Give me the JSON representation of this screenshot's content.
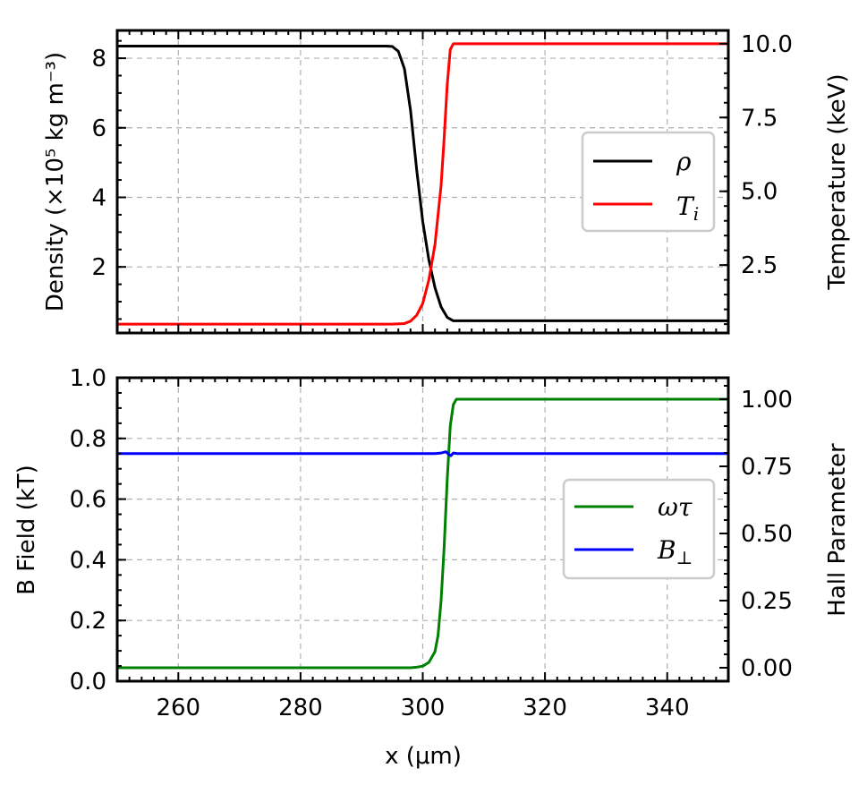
{
  "chart_data": [
    {
      "type": "line",
      "xlim": [
        250,
        350
      ],
      "x_ticks": [
        260,
        280,
        300,
        320,
        340
      ],
      "x_tick_labels_shown": false,
      "grid": true,
      "ylabel": "Density (×10⁵ kg m⁻³)",
      "ylim": [
        0.1,
        8.8
      ],
      "y_ticks": [
        2,
        4,
        6,
        8
      ],
      "y_tick_labels": [
        "2",
        "4",
        "6",
        "8"
      ],
      "y2label": "Temperature (keV)",
      "y2lim": [
        0.2,
        10.45
      ],
      "y2_ticks": [
        2.5,
        5.0,
        7.5,
        10.0
      ],
      "y2_tick_labels": [
        "2.5",
        "5.0",
        "7.5",
        "10.0"
      ],
      "legend": {
        "placement": "right",
        "entries": [
          "ρ",
          "Ti"
        ]
      },
      "series": [
        {
          "name": "ρ",
          "axis": "left",
          "color": "#000000",
          "x": [
            250,
            290,
            294,
            295,
            296,
            297,
            298,
            299,
            300,
            301,
            302,
            303,
            304,
            305,
            350
          ],
          "y": [
            8.35,
            8.35,
            8.35,
            8.34,
            8.2,
            7.7,
            6.5,
            4.8,
            3.3,
            2.2,
            1.4,
            0.85,
            0.55,
            0.45,
            0.45
          ]
        },
        {
          "name": "Ti",
          "axis": "right",
          "color": "#ff0000",
          "x": [
            250,
            295,
            297,
            298,
            299,
            300,
            301,
            302,
            303,
            303.5,
            304,
            304.5,
            305,
            350
          ],
          "y": [
            0.5,
            0.5,
            0.52,
            0.6,
            0.8,
            1.2,
            2.0,
            3.2,
            5.2,
            6.8,
            8.6,
            9.8,
            10.0,
            10.0
          ]
        }
      ]
    },
    {
      "type": "line",
      "xlim": [
        250,
        350
      ],
      "x_ticks": [
        260,
        280,
        300,
        320,
        340
      ],
      "x_tick_labels": [
        "260",
        "280",
        "300",
        "320",
        "340"
      ],
      "xlabel": "x (μm)",
      "grid": true,
      "ylabel": "B Field (kT)",
      "ylim": [
        0.0,
        1.0
      ],
      "y_ticks": [
        0.0,
        0.2,
        0.4,
        0.6,
        0.8,
        1.0
      ],
      "y_tick_labels": [
        "0.0",
        "0.2",
        "0.4",
        "0.6",
        "0.8",
        "1.0"
      ],
      "y2label": "Hall Parameter",
      "y2lim": [
        -0.05,
        1.08
      ],
      "y2_ticks": [
        0.0,
        0.25,
        0.5,
        0.75,
        1.0
      ],
      "y2_tick_labels": [
        "0.00",
        "0.25",
        "0.50",
        "0.75",
        "1.00"
      ],
      "legend": {
        "placement": "right",
        "entries": [
          "ωτ",
          "B⊥"
        ]
      },
      "series": [
        {
          "name": "ωτ",
          "axis": "right",
          "color": "#008000",
          "x": [
            250,
            298,
            299,
            300,
            301,
            302,
            302.5,
            303,
            303.5,
            304,
            304.5,
            305,
            305.5,
            350
          ],
          "y": [
            0.0,
            0.0,
            0.002,
            0.006,
            0.02,
            0.06,
            0.12,
            0.25,
            0.45,
            0.7,
            0.9,
            0.98,
            1.0,
            1.0
          ]
        },
        {
          "name": "B⊥",
          "axis": "left",
          "color": "#0000ff",
          "x": [
            250,
            302,
            303,
            303.8,
            304.2,
            304.6,
            305,
            305.6,
            350
          ],
          "y": [
            0.75,
            0.75,
            0.752,
            0.756,
            0.748,
            0.743,
            0.752,
            0.75,
            0.75
          ]
        }
      ]
    }
  ]
}
